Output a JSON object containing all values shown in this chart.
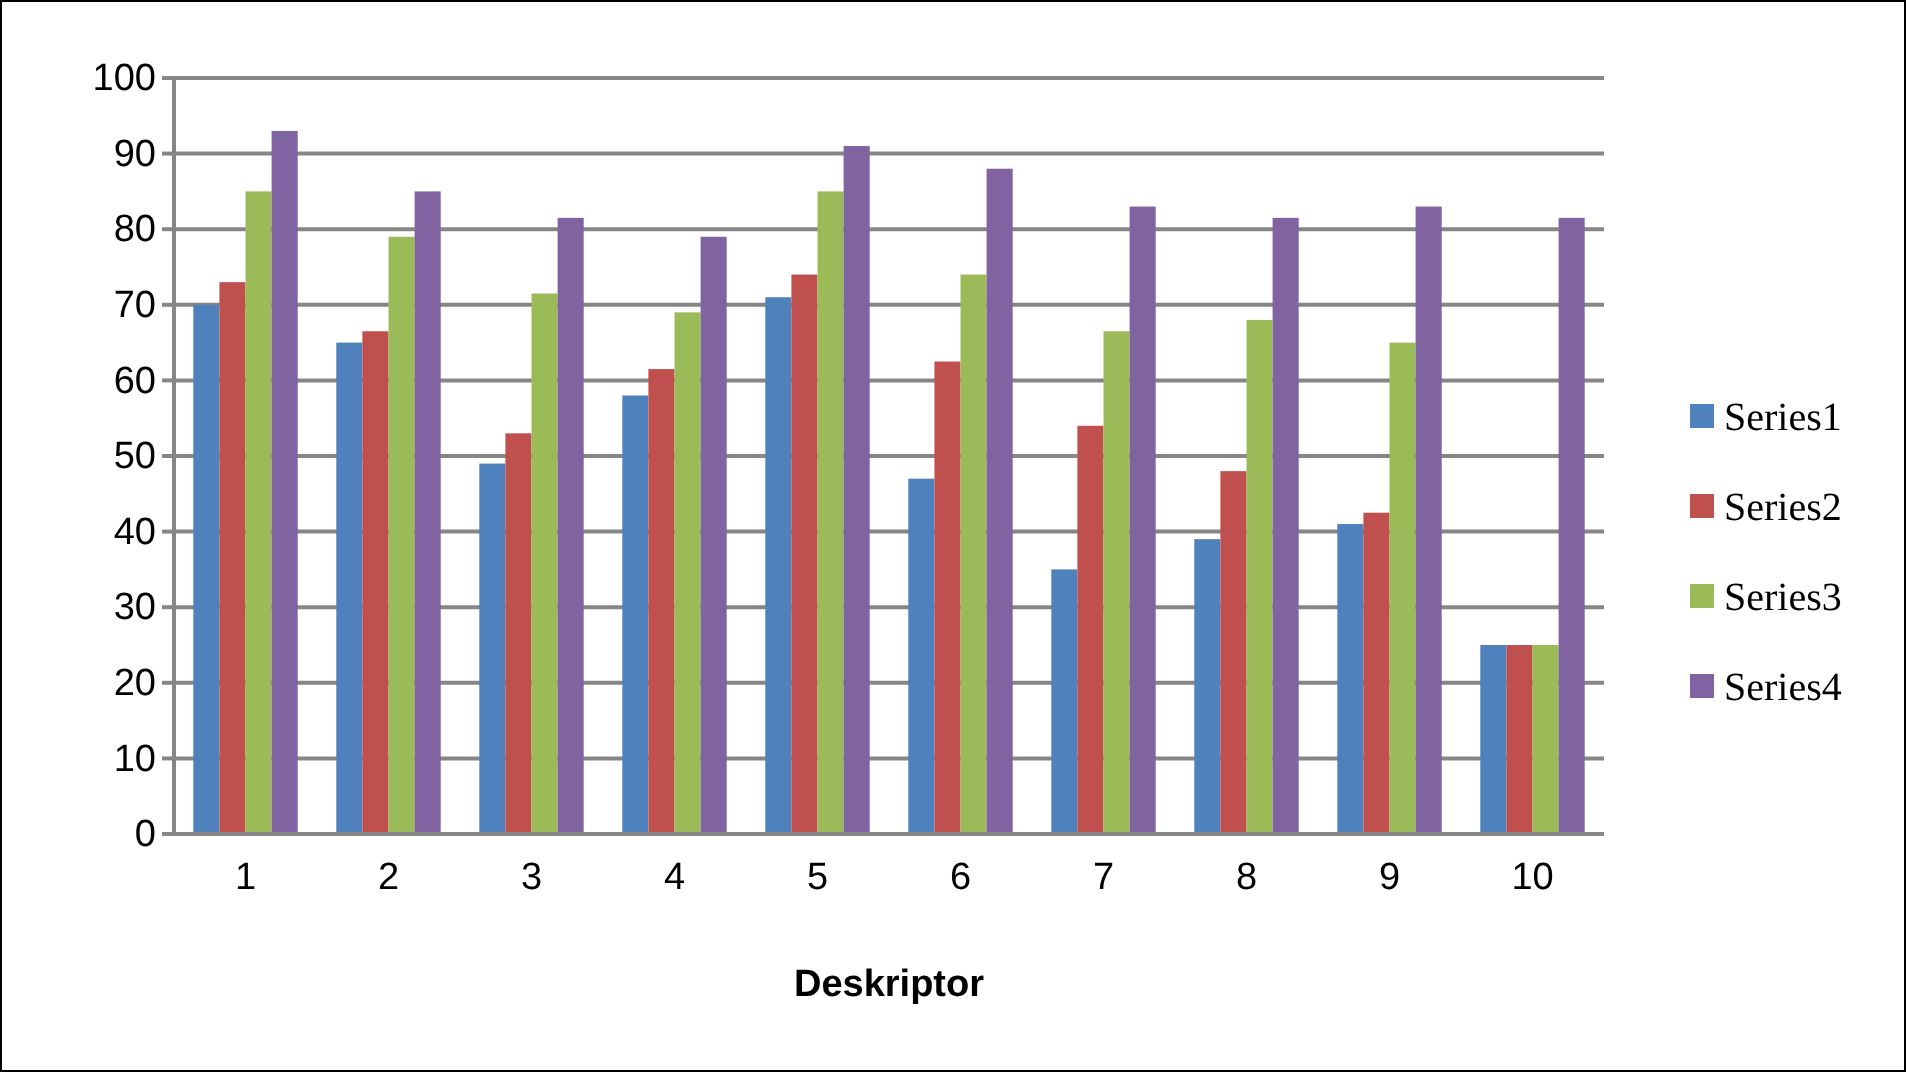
{
  "chart_data": {
    "type": "bar",
    "xlabel": "Deskriptor",
    "categories": [
      "1",
      "2",
      "3",
      "4",
      "5",
      "6",
      "7",
      "8",
      "9",
      "10"
    ],
    "series": [
      {
        "name": "Series1",
        "color": "#4f81bd",
        "values": [
          70,
          65,
          49,
          58,
          71,
          47,
          35,
          39,
          41,
          25
        ]
      },
      {
        "name": "Series2",
        "color": "#c0504d",
        "values": [
          73,
          66.5,
          53,
          61.5,
          74,
          62.5,
          54,
          48,
          42.5,
          25
        ]
      },
      {
        "name": "Series3",
        "color": "#9bbb59",
        "values": [
          85,
          79,
          71.5,
          69,
          85,
          74,
          66.5,
          68,
          65,
          25
        ]
      },
      {
        "name": "Series4",
        "color": "#8064a2",
        "values": [
          93,
          85,
          81.5,
          79,
          91,
          88,
          83,
          81.5,
          83,
          81.5
        ]
      }
    ],
    "ylim": [
      0,
      100
    ],
    "yticks": [
      0,
      10,
      20,
      30,
      40,
      50,
      60,
      70,
      80,
      90,
      100
    ],
    "grid": "y",
    "legend": "right"
  }
}
